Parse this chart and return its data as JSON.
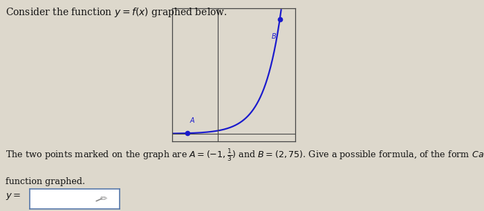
{
  "background_color": "#ddd8cc",
  "title_text": "Consider the function $y = f(x)$ graphed below.",
  "title_fontsize": 10,
  "bottom_text_line1": "The two points marked on the graph are $A = (-1, \\frac{1}{3})$ and $B = (2, 75)$. Give a possible formula, of the form $Ca^x$, for the",
  "bottom_text_line2": "function graphed.",
  "ylabel_text": "$y =$",
  "curve_color": "#1a1acc",
  "point_color": "#1a1acc",
  "point_A": [
    -1,
    0.333
  ],
  "point_B": [
    2,
    75
  ],
  "point_A_label": "A",
  "point_B_label": "B",
  "curve_xlim": [
    -1.5,
    2.5
  ],
  "curve_ylim": [
    -5,
    82
  ],
  "line_width": 1.6,
  "input_box_color": "#ffffff",
  "input_box_border": "#5577aa"
}
